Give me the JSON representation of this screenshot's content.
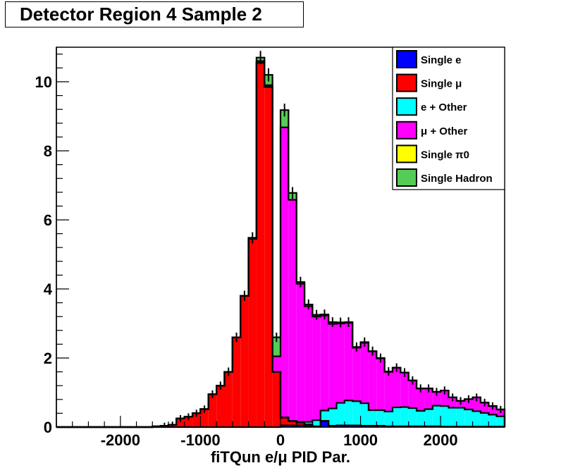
{
  "title": "Detector Region 4 Sample 2",
  "chart_data": {
    "type": "bar",
    "stacked": true,
    "title": "Detector Region 4 Sample 2",
    "xlabel": "fiTQun e/μ PID Par.",
    "ylabel": "",
    "xlim": [
      -2800,
      2800
    ],
    "ylim": [
      0,
      11
    ],
    "bin_width": 100,
    "x_bin_low_edges": [
      -2800,
      -2700,
      -2600,
      -2500,
      -2400,
      -2300,
      -2200,
      -2100,
      -2000,
      -1900,
      -1800,
      -1700,
      -1600,
      -1500,
      -1400,
      -1300,
      -1200,
      -1100,
      -1000,
      -900,
      -800,
      -700,
      -600,
      -500,
      -400,
      -300,
      -200,
      -100,
      0,
      100,
      200,
      300,
      400,
      500,
      600,
      700,
      800,
      900,
      1000,
      1100,
      1200,
      1300,
      1400,
      1500,
      1600,
      1700,
      1800,
      1900,
      2000,
      2100,
      2200,
      2300,
      2400,
      2500,
      2600,
      2700
    ],
    "x_ticks": [
      -2000,
      -1000,
      0,
      1000,
      2000
    ],
    "x_tick_labels": [
      "-2000",
      "-1000",
      "0",
      "1000",
      "2000"
    ],
    "y_ticks": [
      0,
      2,
      4,
      6,
      8,
      10
    ],
    "y_tick_labels": [
      "0",
      "2",
      "4",
      "6",
      "8",
      "10"
    ],
    "legend_position": "top-right",
    "grid": false,
    "series": [
      {
        "name": "Single e",
        "legend_label": "Single e",
        "color": "#0000ff",
        "values": [
          0,
          0,
          0,
          0,
          0,
          0,
          0,
          0,
          0,
          0,
          0,
          0,
          0,
          0,
          0,
          0,
          0,
          0,
          0,
          0,
          0,
          0,
          0,
          0,
          0,
          0,
          0,
          0,
          0.05,
          0.05,
          0.05,
          0.03,
          0.02,
          0.18,
          0.04,
          0.05,
          0.05,
          0.05,
          0.04,
          0.04,
          0.04,
          0.02,
          0.02,
          0.02,
          0.02,
          0.02,
          0.02,
          0.02,
          0.01,
          0.01,
          0.01,
          0.01,
          0.01,
          0.01,
          0.01,
          0.01
        ]
      },
      {
        "name": "Single mu",
        "legend_label": "Single μ",
        "color": "#ff0000",
        "values": [
          0,
          0,
          0,
          0,
          0,
          0,
          0,
          0,
          0,
          0,
          0,
          0,
          0.02,
          0.04,
          0.07,
          0.25,
          0.3,
          0.4,
          0.52,
          0.95,
          1.2,
          1.6,
          2.6,
          3.8,
          5.45,
          10.55,
          9.85,
          1.6,
          0.22,
          0.12,
          0.08,
          0.05,
          0,
          0,
          0,
          0,
          0,
          0,
          0,
          0,
          0,
          0,
          0,
          0,
          0,
          0,
          0,
          0,
          0,
          0,
          0,
          0,
          0,
          0,
          0,
          0
        ]
      },
      {
        "name": "e + Other",
        "legend_label": "e + Other",
        "color": "#00ffff",
        "values": [
          0,
          0,
          0,
          0,
          0,
          0,
          0,
          0,
          0,
          0,
          0,
          0,
          0,
          0,
          0,
          0,
          0,
          0,
          0,
          0,
          0,
          0,
          0,
          0,
          0,
          0,
          0,
          0,
          0.01,
          0.01,
          0.02,
          0.07,
          0.18,
          0.3,
          0.5,
          0.65,
          0.72,
          0.7,
          0.65,
          0.45,
          0.45,
          0.43,
          0.55,
          0.56,
          0.53,
          0.45,
          0.5,
          0.6,
          0.6,
          0.55,
          0.55,
          0.5,
          0.45,
          0.4,
          0.35,
          0.3
        ]
      },
      {
        "name": "mu + Other",
        "legend_label": "μ + Other",
        "color": "#ff00ff",
        "values": [
          0,
          0,
          0,
          0,
          0,
          0,
          0,
          0,
          0,
          0,
          0,
          0,
          0,
          0,
          0,
          0,
          0,
          0,
          0,
          0,
          0,
          0,
          0,
          0,
          0.03,
          0.05,
          0.05,
          0.45,
          8.4,
          6.4,
          4.0,
          3.35,
          3.0,
          2.75,
          2.45,
          2.3,
          2.25,
          1.55,
          1.75,
          1.7,
          1.5,
          1.15,
          1.15,
          1.0,
          0.8,
          0.65,
          0.6,
          0.4,
          0.45,
          0.3,
          0.2,
          0.3,
          0.4,
          0.3,
          0.25,
          0.2
        ]
      },
      {
        "name": "Single pi0",
        "legend_label": "Single π0",
        "color": "#ffff00",
        "values": [
          0,
          0,
          0,
          0,
          0,
          0,
          0,
          0,
          0,
          0,
          0,
          0,
          0,
          0,
          0,
          0,
          0,
          0,
          0,
          0,
          0,
          0,
          0,
          0,
          0,
          0,
          0,
          0,
          0,
          0,
          0,
          0,
          0,
          0,
          0,
          0,
          0,
          0,
          0,
          0,
          0,
          0,
          0,
          0,
          0,
          0,
          0,
          0,
          0,
          0,
          0,
          0,
          0,
          0,
          0,
          0
        ]
      },
      {
        "name": "Single Hadron",
        "legend_label": "Single Hadron",
        "color": "#55cc55",
        "values": [
          0,
          0,
          0,
          0,
          0,
          0,
          0,
          0,
          0,
          0,
          0,
          0,
          0,
          0,
          0,
          0,
          0,
          0,
          0,
          0,
          0,
          0,
          0,
          0,
          0,
          0.1,
          0.3,
          0.55,
          0.5,
          0.2,
          0.05,
          0.05,
          0.05,
          0.03,
          0.05,
          0.03,
          0.02,
          0.02,
          0.02,
          0.01,
          0.01,
          0.01,
          0,
          0,
          0,
          0,
          0,
          0,
          0,
          0,
          0,
          0,
          0,
          0,
          0,
          0
        ]
      }
    ]
  }
}
